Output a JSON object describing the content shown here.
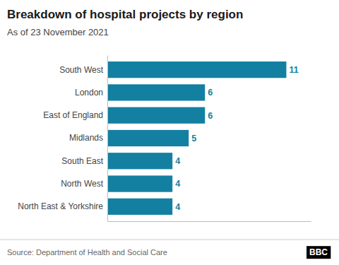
{
  "chart_data": {
    "type": "bar",
    "orientation": "horizontal",
    "title": "Breakdown of hospital projects by region",
    "subtitle": "As of 23 November 2021",
    "source": "Source: Department of Health and Social Care",
    "annotations": [
      "BBC"
    ],
    "categories": [
      "North East & Yorkshire",
      "North West",
      "South East",
      "Midlands",
      "East of England",
      "London",
      "South West"
    ],
    "values": [
      4,
      4,
      4,
      5,
      6,
      6,
      11
    ],
    "color": "#1380A1",
    "xlim": [
      0,
      12.5
    ],
    "tick_labels": "y",
    "data_labels": true,
    "grid": false
  }
}
